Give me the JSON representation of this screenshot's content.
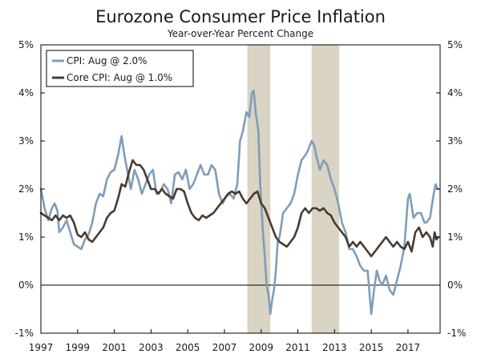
{
  "chart_data": {
    "type": "line",
    "title": "Eurozone Consumer Price Inflation",
    "subtitle": "Year-over-Year Percent Change",
    "xlabel": "",
    "ylabel": "",
    "xlim": [
      1997.0,
      2018.75
    ],
    "ylim": [
      -1,
      5
    ],
    "y_ticks": [
      -1,
      0,
      1,
      2,
      3,
      4,
      5
    ],
    "y_tick_labels": [
      "-1%",
      "0%",
      "1%",
      "2%",
      "3%",
      "4%",
      "5%"
    ],
    "x_ticks": [
      1997,
      1999,
      2001,
      2003,
      2005,
      2007,
      2009,
      2011,
      2013,
      2015,
      2017
    ],
    "x_tick_labels": [
      "1997",
      "1999",
      "2001",
      "2003",
      "2005",
      "2007",
      "2009",
      "2011",
      "2013",
      "2015",
      "2017"
    ],
    "zero_line": 0,
    "grid": false,
    "legend_position": "top-left",
    "recession_bands": [
      {
        "start": 2008.25,
        "end": 2009.5,
        "color": "#d9d4c3"
      },
      {
        "start": 2011.75,
        "end": 2013.25,
        "color": "#d9d4c3"
      }
    ],
    "series": [
      {
        "name": "CPI: Aug @ 2.0%",
        "color": "#7f9db7",
        "points": [
          [
            1997.0,
            2.0
          ],
          [
            1997.2,
            1.6
          ],
          [
            1997.4,
            1.35
          ],
          [
            1997.6,
            1.6
          ],
          [
            1997.75,
            1.7
          ],
          [
            1997.9,
            1.55
          ],
          [
            1998.0,
            1.1
          ],
          [
            1998.2,
            1.2
          ],
          [
            1998.4,
            1.35
          ],
          [
            1998.6,
            1.1
          ],
          [
            1998.8,
            0.85
          ],
          [
            1999.0,
            0.8
          ],
          [
            1999.2,
            0.75
          ],
          [
            1999.4,
            0.95
          ],
          [
            1999.6,
            1.05
          ],
          [
            1999.8,
            1.3
          ],
          [
            2000.0,
            1.7
          ],
          [
            2000.2,
            1.9
          ],
          [
            2000.4,
            1.85
          ],
          [
            2000.6,
            2.2
          ],
          [
            2000.8,
            2.35
          ],
          [
            2001.0,
            2.4
          ],
          [
            2001.2,
            2.7
          ],
          [
            2001.4,
            3.1
          ],
          [
            2001.55,
            2.7
          ],
          [
            2001.7,
            2.4
          ],
          [
            2001.9,
            2.0
          ],
          [
            2002.1,
            2.4
          ],
          [
            2002.3,
            2.2
          ],
          [
            2002.5,
            1.9
          ],
          [
            2002.7,
            2.1
          ],
          [
            2002.9,
            2.3
          ],
          [
            2003.1,
            2.4
          ],
          [
            2003.3,
            1.9
          ],
          [
            2003.5,
            1.95
          ],
          [
            2003.7,
            2.1
          ],
          [
            2003.9,
            2.0
          ],
          [
            2004.1,
            1.7
          ],
          [
            2004.3,
            2.3
          ],
          [
            2004.5,
            2.35
          ],
          [
            2004.7,
            2.2
          ],
          [
            2004.9,
            2.4
          ],
          [
            2005.1,
            2.0
          ],
          [
            2005.3,
            2.1
          ],
          [
            2005.5,
            2.3
          ],
          [
            2005.7,
            2.5
          ],
          [
            2005.9,
            2.3
          ],
          [
            2006.1,
            2.3
          ],
          [
            2006.3,
            2.5
          ],
          [
            2006.5,
            2.4
          ],
          [
            2006.7,
            1.9
          ],
          [
            2006.9,
            1.7
          ],
          [
            2007.1,
            1.85
          ],
          [
            2007.3,
            1.9
          ],
          [
            2007.5,
            1.8
          ],
          [
            2007.7,
            2.1
          ],
          [
            2007.85,
            3.0
          ],
          [
            2008.0,
            3.2
          ],
          [
            2008.2,
            3.6
          ],
          [
            2008.35,
            3.5
          ],
          [
            2008.5,
            4.0
          ],
          [
            2008.6,
            4.05
          ],
          [
            2008.7,
            3.6
          ],
          [
            2008.85,
            3.2
          ],
          [
            2008.95,
            2.1
          ],
          [
            2009.1,
            1.1
          ],
          [
            2009.2,
            0.6
          ],
          [
            2009.3,
            0.0
          ],
          [
            2009.4,
            -0.2
          ],
          [
            2009.5,
            -0.6
          ],
          [
            2009.6,
            -0.3
          ],
          [
            2009.7,
            -0.1
          ],
          [
            2009.8,
            0.3
          ],
          [
            2009.9,
            0.9
          ],
          [
            2010.0,
            1.0
          ],
          [
            2010.2,
            1.5
          ],
          [
            2010.4,
            1.6
          ],
          [
            2010.6,
            1.7
          ],
          [
            2010.8,
            1.9
          ],
          [
            2011.0,
            2.3
          ],
          [
            2011.2,
            2.6
          ],
          [
            2011.4,
            2.7
          ],
          [
            2011.55,
            2.8
          ],
          [
            2011.75,
            3.0
          ],
          [
            2011.9,
            2.9
          ],
          [
            2012.0,
            2.7
          ],
          [
            2012.2,
            2.4
          ],
          [
            2012.4,
            2.6
          ],
          [
            2012.6,
            2.5
          ],
          [
            2012.8,
            2.2
          ],
          [
            2013.0,
            2.0
          ],
          [
            2013.2,
            1.7
          ],
          [
            2013.4,
            1.3
          ],
          [
            2013.6,
            1.1
          ],
          [
            2013.8,
            0.75
          ],
          [
            2014.0,
            0.75
          ],
          [
            2014.2,
            0.6
          ],
          [
            2014.4,
            0.4
          ],
          [
            2014.6,
            0.3
          ],
          [
            2014.8,
            0.3
          ],
          [
            2015.0,
            -0.6
          ],
          [
            2015.15,
            -0.1
          ],
          [
            2015.3,
            0.3
          ],
          [
            2015.45,
            0.1
          ],
          [
            2015.6,
            0.0
          ],
          [
            2015.8,
            0.2
          ],
          [
            2016.0,
            -0.1
          ],
          [
            2016.2,
            -0.2
          ],
          [
            2016.4,
            0.1
          ],
          [
            2016.6,
            0.4
          ],
          [
            2016.8,
            0.8
          ],
          [
            2017.0,
            1.8
          ],
          [
            2017.1,
            1.9
          ],
          [
            2017.3,
            1.4
          ],
          [
            2017.5,
            1.5
          ],
          [
            2017.7,
            1.5
          ],
          [
            2017.9,
            1.3
          ],
          [
            2018.0,
            1.3
          ],
          [
            2018.2,
            1.4
          ],
          [
            2018.4,
            1.9
          ],
          [
            2018.5,
            2.1
          ],
          [
            2018.6,
            2.0
          ],
          [
            2018.65,
            2.0
          ]
        ]
      },
      {
        "name": "Core CPI: Aug @ 1.0%",
        "color": "#4a3a2e",
        "points": [
          [
            1997.0,
            1.5
          ],
          [
            1997.2,
            1.45
          ],
          [
            1997.4,
            1.4
          ],
          [
            1997.6,
            1.35
          ],
          [
            1997.8,
            1.45
          ],
          [
            1998.0,
            1.35
          ],
          [
            1998.2,
            1.45
          ],
          [
            1998.4,
            1.4
          ],
          [
            1998.6,
            1.45
          ],
          [
            1998.8,
            1.3
          ],
          [
            1999.0,
            1.05
          ],
          [
            1999.2,
            1.0
          ],
          [
            1999.4,
            1.1
          ],
          [
            1999.6,
            0.95
          ],
          [
            1999.8,
            0.9
          ],
          [
            2000.0,
            1.0
          ],
          [
            2000.2,
            1.1
          ],
          [
            2000.4,
            1.2
          ],
          [
            2000.6,
            1.4
          ],
          [
            2000.8,
            1.5
          ],
          [
            2001.0,
            1.55
          ],
          [
            2001.2,
            1.8
          ],
          [
            2001.4,
            2.1
          ],
          [
            2001.6,
            2.05
          ],
          [
            2001.8,
            2.35
          ],
          [
            2002.0,
            2.6
          ],
          [
            2002.2,
            2.5
          ],
          [
            2002.4,
            2.5
          ],
          [
            2002.6,
            2.4
          ],
          [
            2002.8,
            2.2
          ],
          [
            2003.0,
            2.0
          ],
          [
            2003.2,
            2.0
          ],
          [
            2003.4,
            1.9
          ],
          [
            2003.6,
            2.0
          ],
          [
            2003.8,
            1.9
          ],
          [
            2004.0,
            1.85
          ],
          [
            2004.2,
            1.8
          ],
          [
            2004.4,
            2.0
          ],
          [
            2004.6,
            2.0
          ],
          [
            2004.8,
            1.95
          ],
          [
            2005.0,
            1.7
          ],
          [
            2005.2,
            1.5
          ],
          [
            2005.4,
            1.4
          ],
          [
            2005.6,
            1.35
          ],
          [
            2005.8,
            1.45
          ],
          [
            2006.0,
            1.4
          ],
          [
            2006.2,
            1.45
          ],
          [
            2006.4,
            1.5
          ],
          [
            2006.6,
            1.6
          ],
          [
            2006.8,
            1.7
          ],
          [
            2007.0,
            1.8
          ],
          [
            2007.2,
            1.9
          ],
          [
            2007.4,
            1.95
          ],
          [
            2007.6,
            1.9
          ],
          [
            2007.8,
            1.95
          ],
          [
            2008.0,
            1.8
          ],
          [
            2008.2,
            1.7
          ],
          [
            2008.4,
            1.8
          ],
          [
            2008.6,
            1.9
          ],
          [
            2008.8,
            1.95
          ],
          [
            2009.0,
            1.7
          ],
          [
            2009.2,
            1.6
          ],
          [
            2009.4,
            1.4
          ],
          [
            2009.6,
            1.2
          ],
          [
            2009.8,
            1.0
          ],
          [
            2010.0,
            0.9
          ],
          [
            2010.2,
            0.85
          ],
          [
            2010.4,
            0.8
          ],
          [
            2010.6,
            0.9
          ],
          [
            2010.8,
            1.0
          ],
          [
            2011.0,
            1.2
          ],
          [
            2011.2,
            1.5
          ],
          [
            2011.4,
            1.6
          ],
          [
            2011.6,
            1.5
          ],
          [
            2011.8,
            1.6
          ],
          [
            2012.0,
            1.6
          ],
          [
            2012.2,
            1.55
          ],
          [
            2012.4,
            1.6
          ],
          [
            2012.6,
            1.5
          ],
          [
            2012.8,
            1.45
          ],
          [
            2013.0,
            1.3
          ],
          [
            2013.2,
            1.2
          ],
          [
            2013.4,
            1.1
          ],
          [
            2013.6,
            1.0
          ],
          [
            2013.8,
            0.8
          ],
          [
            2014.0,
            0.9
          ],
          [
            2014.2,
            0.8
          ],
          [
            2014.4,
            0.9
          ],
          [
            2014.6,
            0.8
          ],
          [
            2014.8,
            0.7
          ],
          [
            2015.0,
            0.6
          ],
          [
            2015.2,
            0.7
          ],
          [
            2015.4,
            0.8
          ],
          [
            2015.6,
            0.9
          ],
          [
            2015.8,
            1.0
          ],
          [
            2016.0,
            0.9
          ],
          [
            2016.2,
            0.8
          ],
          [
            2016.4,
            0.9
          ],
          [
            2016.6,
            0.8
          ],
          [
            2016.8,
            0.75
          ],
          [
            2017.0,
            0.9
          ],
          [
            2017.2,
            0.7
          ],
          [
            2017.4,
            1.1
          ],
          [
            2017.6,
            1.2
          ],
          [
            2017.8,
            1.0
          ],
          [
            2018.0,
            1.1
          ],
          [
            2018.2,
            1.0
          ],
          [
            2018.35,
            0.8
          ],
          [
            2018.45,
            1.1
          ],
          [
            2018.55,
            0.95
          ],
          [
            2018.65,
            1.0
          ]
        ]
      }
    ]
  }
}
